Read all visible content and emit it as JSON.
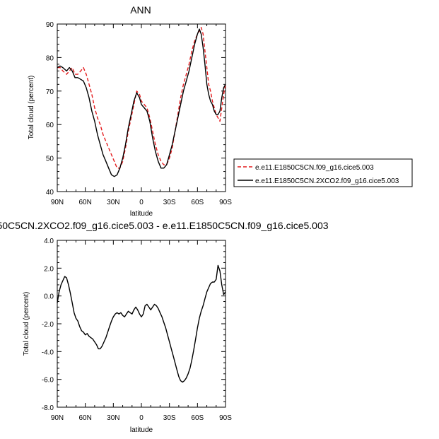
{
  "chart_data": [
    {
      "type": "line",
      "title": "ANN",
      "xlabel": "latitude",
      "ylabel": "Total cloud (percent)",
      "xlim": [
        90,
        -90
      ],
      "ylim": [
        40,
        90
      ],
      "x_ticks": [
        {
          "value": 90,
          "label": "90N"
        },
        {
          "value": 60,
          "label": "60N"
        },
        {
          "value": 30,
          "label": "30N"
        },
        {
          "value": 0,
          "label": "0"
        },
        {
          "value": -30,
          "label": "30S"
        },
        {
          "value": -60,
          "label": "60S"
        },
        {
          "value": -90,
          "label": "90S"
        }
      ],
      "y_ticks": [
        {
          "value": 40,
          "label": "40"
        },
        {
          "value": 50,
          "label": "50"
        },
        {
          "value": 60,
          "label": "60"
        },
        {
          "value": 70,
          "label": "70"
        },
        {
          "value": 80,
          "label": "80"
        },
        {
          "value": 90,
          "label": "90"
        }
      ],
      "legend_position": "right",
      "series": [
        {
          "name": "e.e11.E1850C5CN.f09_g16.cice5.003",
          "color": "#e41a1c",
          "dash": "dashed",
          "x": [
            90,
            87,
            84,
            80,
            77,
            74,
            71,
            68,
            65,
            62,
            59,
            56,
            53,
            50,
            47,
            44,
            41,
            38,
            35,
            32,
            29,
            26,
            23,
            20,
            17,
            14,
            11,
            8,
            5,
            2,
            0,
            -3,
            -6,
            -9,
            -12,
            -15,
            -18,
            -21,
            -24,
            -27,
            -30,
            -33,
            -36,
            -39,
            -42,
            -45,
            -48,
            -51,
            -54,
            -57,
            -60,
            -62,
            -64,
            -66,
            -68,
            -70,
            -72,
            -74,
            -76,
            -78,
            -80,
            -82,
            -84,
            -86,
            -88,
            -90
          ],
          "y": [
            77,
            77,
            76,
            75,
            76,
            77,
            75,
            75,
            76,
            77,
            75,
            72,
            69,
            65,
            62,
            60,
            57,
            55,
            53,
            51,
            49,
            47,
            47,
            49,
            53,
            58,
            62,
            66,
            70,
            69,
            67,
            66,
            65,
            62,
            58,
            54,
            51,
            49,
            48,
            48,
            50,
            53,
            58,
            63,
            68,
            72,
            75,
            78,
            82,
            85,
            87,
            88,
            89,
            87,
            82,
            77,
            72,
            70,
            67,
            65,
            63,
            62,
            61,
            65,
            69,
            72
          ]
        },
        {
          "name": "e.e11.E1850C5CN.2XCO2.f09_g16.cice5.003",
          "color": "#000000",
          "dash": "solid",
          "x": [
            90,
            87,
            84,
            80,
            77,
            74,
            71,
            68,
            65,
            62,
            59,
            56,
            53,
            50,
            47,
            44,
            41,
            38,
            35,
            32,
            29,
            26,
            23,
            20,
            17,
            14,
            11,
            8,
            5,
            2,
            0,
            -3,
            -6,
            -9,
            -12,
            -15,
            -18,
            -21,
            -24,
            -27,
            -30,
            -33,
            -36,
            -39,
            -42,
            -45,
            -48,
            -51,
            -54,
            -57,
            -60,
            -62,
            -64,
            -66,
            -68,
            -70,
            -72,
            -74,
            -76,
            -78,
            -80,
            -82,
            -84,
            -86,
            -88,
            -90
          ],
          "y": [
            77,
            77.5,
            77,
            76,
            77,
            76,
            74,
            74,
            73.5,
            73,
            71,
            68,
            64,
            61,
            57,
            54,
            51,
            49,
            47,
            45,
            44.5,
            45,
            47,
            50,
            54,
            59,
            63,
            67,
            69.5,
            68,
            66,
            65,
            64,
            61,
            56,
            52,
            49,
            47,
            47,
            48,
            51,
            54,
            58,
            62,
            66,
            70,
            73,
            76,
            80,
            84,
            87,
            88.5,
            87,
            83,
            78,
            72,
            69,
            67,
            66,
            64,
            63,
            63,
            64,
            68,
            71,
            72
          ]
        }
      ]
    },
    {
      "type": "line",
      "title": "50C5CN.2XCO2.f09_g16.cice5.003 - e.e11.E1850C5CN.f09_g16.cice5.003",
      "xlabel": "latitude",
      "ylabel": "Total cloud (percent)",
      "xlim": [
        90,
        -90
      ],
      "ylim": [
        -8,
        4
      ],
      "x_ticks": [
        {
          "value": 90,
          "label": "90N"
        },
        {
          "value": 60,
          "label": "60N"
        },
        {
          "value": 30,
          "label": "30N"
        },
        {
          "value": 0,
          "label": "0"
        },
        {
          "value": -30,
          "label": "30S"
        },
        {
          "value": -60,
          "label": "60S"
        },
        {
          "value": -90,
          "label": "90S"
        }
      ],
      "y_ticks": [
        {
          "value": 4,
          "label": "4.0"
        },
        {
          "value": 2,
          "label": "2.0"
        },
        {
          "value": 0,
          "label": "0.0"
        },
        {
          "value": -2,
          "label": "-2.0"
        },
        {
          "value": -4,
          "label": "-4.0"
        },
        {
          "value": -6,
          "label": "-6.0"
        },
        {
          "value": -8,
          "label": "-8.0"
        }
      ],
      "series": [
        {
          "color": "#000000",
          "dash": "solid",
          "x": [
            90,
            88,
            86,
            84,
            82,
            80,
            78,
            76,
            74,
            72,
            70,
            68,
            66,
            64,
            62,
            60,
            58,
            56,
            54,
            52,
            50,
            48,
            46,
            44,
            42,
            40,
            38,
            36,
            34,
            32,
            30,
            28,
            26,
            24,
            22,
            20,
            18,
            16,
            14,
            12,
            10,
            8,
            6,
            4,
            2,
            0,
            -2,
            -4,
            -6,
            -8,
            -10,
            -12,
            -14,
            -16,
            -18,
            -20,
            -22,
            -24,
            -26,
            -28,
            -30,
            -32,
            -34,
            -36,
            -38,
            -40,
            -42,
            -44,
            -46,
            -48,
            -50,
            -52,
            -54,
            -56,
            -58,
            -60,
            -62,
            -64,
            -66,
            -68,
            -70,
            -72,
            -74,
            -76,
            -78,
            -80,
            -82,
            -84,
            -86,
            -88,
            -90
          ],
          "y": [
            -0.5,
            0.3,
            0.8,
            1.1,
            1.4,
            1.3,
            0.8,
            0.2,
            -0.5,
            -1.2,
            -1.6,
            -1.8,
            -2.2,
            -2.5,
            -2.6,
            -2.8,
            -2.7,
            -2.9,
            -3.0,
            -3.1,
            -3.3,
            -3.5,
            -3.8,
            -3.8,
            -3.6,
            -3.3,
            -3.0,
            -2.6,
            -2.2,
            -1.8,
            -1.5,
            -1.3,
            -1.2,
            -1.3,
            -1.2,
            -1.4,
            -1.5,
            -1.3,
            -1.1,
            -1.2,
            -1.3,
            -1.0,
            -0.8,
            -1.0,
            -1.3,
            -1.5,
            -1.3,
            -0.7,
            -0.6,
            -0.8,
            -1.0,
            -0.8,
            -0.6,
            -0.7,
            -0.9,
            -1.2,
            -1.5,
            -1.9,
            -2.3,
            -2.8,
            -3.3,
            -3.8,
            -4.3,
            -4.8,
            -5.3,
            -5.8,
            -6.1,
            -6.2,
            -6.1,
            -5.9,
            -5.6,
            -5.2,
            -4.6,
            -3.9,
            -3.1,
            -2.3,
            -1.6,
            -1.1,
            -0.7,
            -0.2,
            0.3,
            0.6,
            0.9,
            1.0,
            1.0,
            1.2,
            2.2,
            1.8,
            0.8,
            0.1,
            0.3
          ]
        }
      ]
    }
  ]
}
